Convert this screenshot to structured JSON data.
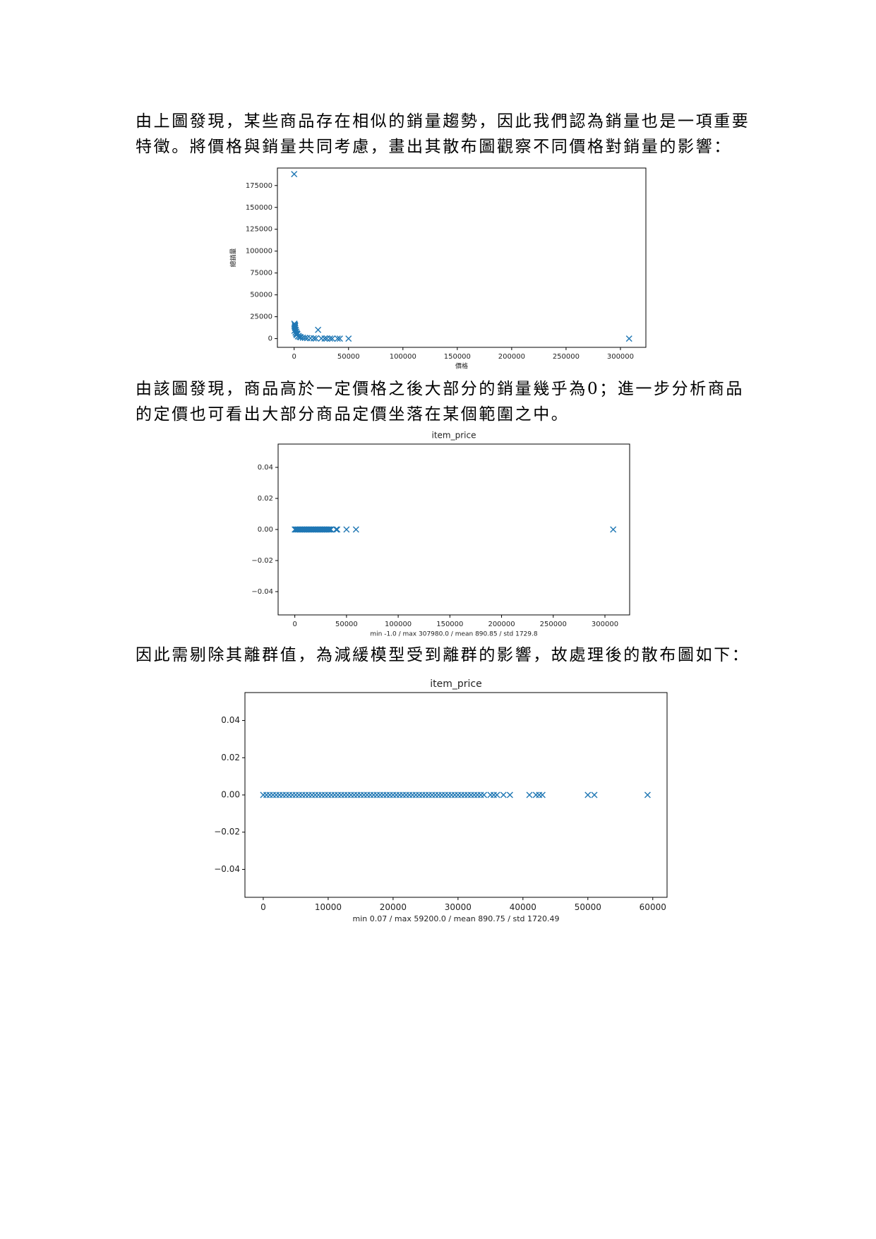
{
  "paragraphs": [
    [
      "由上圖發現，某些商品存在相似的銷量趨勢，因此我們認為銷量也是一項重要",
      "特徵。將價格與銷量共同考慮，畫出其散布圖觀察不同價格對銷量的影響："
    ],
    [
      "由該圖發現，商品高於一定價格之後大部分的銷量幾乎為0；進一步分析商品",
      "的定價也可看出大部分商品定價坐落在某個範圍之中。"
    ],
    [
      "因此需剔除其離群值，為減緩模型受到離群的影響，故處理後的散布圖如下："
    ]
  ],
  "chart_data": [
    {
      "type": "scatter",
      "xlabel": "價格",
      "ylabel": "總銷量",
      "color": "#1f77b4",
      "x": [
        0,
        200,
        500,
        800,
        1000,
        1500,
        2000,
        2500,
        3000,
        4000,
        5000,
        6000,
        8000,
        10000,
        12000,
        15000,
        18000,
        20000,
        22000,
        25000,
        28000,
        30000,
        33000,
        35000,
        40000,
        42000,
        50000,
        307980,
        300,
        1200,
        2200,
        3500,
        600,
        900,
        1800
      ],
      "y": [
        188000,
        17000,
        16000,
        14000,
        12000,
        10000,
        8000,
        6000,
        5000,
        3000,
        2000,
        1500,
        1000,
        800,
        600,
        400,
        300,
        200,
        10000,
        150,
        100,
        80,
        50,
        30,
        20,
        10,
        5,
        0,
        9000,
        7000,
        4000,
        2500,
        13000,
        15000,
        5500
      ],
      "xlim": [
        -15400,
        323400
      ],
      "ylim": [
        -10000,
        195000
      ],
      "xticks": [
        0,
        50000,
        100000,
        150000,
        200000,
        250000,
        300000
      ],
      "yticks": [
        0,
        25000,
        50000,
        75000,
        100000,
        125000,
        150000,
        175000
      ]
    },
    {
      "type": "strip",
      "title": "item_price",
      "xlabel": "min -1.0 / max 307980.0 / mean 890.85 / std 1729.8",
      "color": "#1f77b4",
      "values": [
        0,
        1000,
        2000,
        3000,
        4000,
        5000,
        6000,
        7000,
        8000,
        9000,
        10000,
        11000,
        12000,
        13000,
        14000,
        15000,
        16000,
        17000,
        18000,
        19000,
        20000,
        21000,
        22000,
        23000,
        24000,
        25000,
        26000,
        27000,
        28000,
        29000,
        30000,
        31000,
        32000,
        33000,
        34000,
        35000,
        40000,
        41000,
        50000,
        59200,
        307980
      ],
      "xlim": [
        -16150,
        323900
      ],
      "ylim": [
        -0.055,
        0.055
      ],
      "xticks": [
        0,
        50000,
        100000,
        150000,
        200000,
        250000,
        300000
      ],
      "yticks": [
        {
          "value": -0.04,
          "label": "−0.04"
        },
        {
          "value": -0.02,
          "label": "−0.02"
        },
        {
          "value": 0,
          "label": "0.00"
        },
        0.02,
        0.04
      ]
    },
    {
      "type": "strip",
      "title": "item_price",
      "xlabel": "min 0.07 / max 59200.0 / mean 890.75 / std 1720.49",
      "color": "#1f77b4",
      "values": [
        0,
        500,
        1000,
        1500,
        2000,
        2500,
        3000,
        3500,
        4000,
        4500,
        5000,
        5500,
        6000,
        6500,
        7000,
        7500,
        8000,
        8500,
        9000,
        9500,
        10000,
        10500,
        11000,
        11500,
        12000,
        12500,
        13000,
        13500,
        14000,
        14500,
        15000,
        15500,
        16000,
        16500,
        17000,
        17500,
        18000,
        18500,
        19000,
        19500,
        20000,
        20500,
        21000,
        21500,
        22000,
        22500,
        23000,
        23500,
        24000,
        24500,
        25000,
        25500,
        26000,
        26500,
        27000,
        27500,
        28000,
        28500,
        29000,
        29500,
        30000,
        30500,
        31000,
        31500,
        32000,
        32500,
        33000,
        33500,
        34000,
        35000,
        35500,
        36000,
        37000,
        38000,
        41000,
        42000,
        42500,
        43000,
        50000,
        51000,
        59200
      ],
      "xlim": [
        -2820,
        62200
      ],
      "ylim": [
        -0.055,
        0.055
      ],
      "xticks": [
        0,
        10000,
        20000,
        30000,
        40000,
        50000,
        60000
      ],
      "yticks": [
        {
          "value": -0.04,
          "label": "−0.04"
        },
        {
          "value": -0.02,
          "label": "−0.02"
        },
        {
          "value": 0,
          "label": "0.00"
        },
        0.02,
        0.04
      ]
    }
  ]
}
